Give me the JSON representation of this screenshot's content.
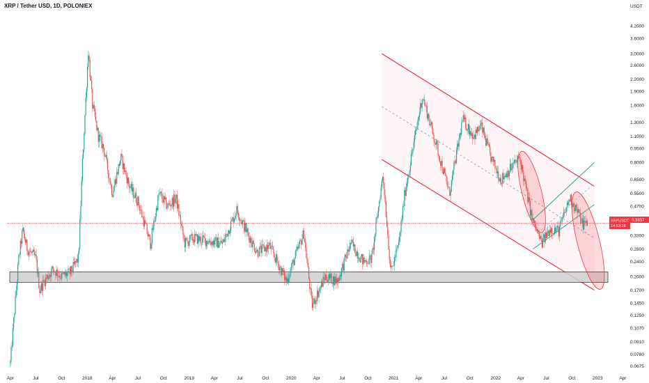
{
  "header": {
    "title": "XRP / Tether USD, 1D, POLONIEX"
  },
  "axis": {
    "unit": "USDT"
  },
  "price_label": {
    "symbol": "XRPUSDT",
    "price": "0.3837",
    "countdown": "14:53:19",
    "color": "#f23645"
  },
  "colors": {
    "up": "#26a69a",
    "down": "#ef5350",
    "channel": "#f23645",
    "rising_channel": "#22ab94",
    "zone": "#cfcfcf"
  },
  "chart_data": {
    "type": "candlestick",
    "title": "XRP / Tether USD, 1D, POLONIEX",
    "scale": "log",
    "ylim": [
      0.0625,
      5.2
    ],
    "x_ticks": [
      "Apr",
      "Jul",
      "Oct",
      "2018",
      "Apr",
      "Jul",
      "Oct",
      "2019",
      "Apr",
      "Jul",
      "Oct",
      "2020",
      "Apr",
      "Jul",
      "Oct",
      "2021",
      "Apr",
      "Jul",
      "Oct",
      "2022",
      "Apr",
      "Jul",
      "Oct",
      "2023",
      "Apr"
    ],
    "y_ticks": [
      "0.0675",
      "0.0780",
      "0.0910",
      "0.1070",
      "0.1250",
      "0.1450",
      "0.1700",
      "0.2000",
      "0.2400",
      "0.2800",
      "0.3300",
      "0.4700",
      "0.5500",
      "0.6500",
      "0.8000",
      "0.9500",
      "1.1000",
      "1.3000",
      "1.6000",
      "1.9000",
      "2.2000",
      "2.6000",
      "3.0000",
      "3.6000",
      "4.2000"
    ],
    "y_tick_values": [
      0.0675,
      0.078,
      0.091,
      0.107,
      0.125,
      0.145,
      0.17,
      0.2,
      0.24,
      0.28,
      0.33,
      0.47,
      0.55,
      0.65,
      0.8,
      0.95,
      1.1,
      1.3,
      1.6,
      1.9,
      2.2,
      2.6,
      3.0,
      3.6,
      4.2
    ],
    "current_price": 0.3837,
    "price_path": [
      [
        "2017-04-01",
        0.07
      ],
      [
        "2017-05-01",
        0.25
      ],
      [
        "2017-05-15",
        0.35
      ],
      [
        "2017-06-01",
        0.28
      ],
      [
        "2017-07-01",
        0.25
      ],
      [
        "2017-07-15",
        0.17
      ],
      [
        "2017-08-01",
        0.19
      ],
      [
        "2017-09-01",
        0.22
      ],
      [
        "2017-10-01",
        0.2
      ],
      [
        "2017-11-01",
        0.21
      ],
      [
        "2017-12-01",
        0.25
      ],
      [
        "2017-12-15",
        0.8
      ],
      [
        "2018-01-05",
        3.1
      ],
      [
        "2018-01-20",
        1.6
      ],
      [
        "2018-02-10",
        1.1
      ],
      [
        "2018-03-01",
        0.95
      ],
      [
        "2018-04-01",
        0.55
      ],
      [
        "2018-05-01",
        0.85
      ],
      [
        "2018-06-01",
        0.6
      ],
      [
        "2018-07-01",
        0.5
      ],
      [
        "2018-08-15",
        0.3
      ],
      [
        "2018-09-15",
        0.55
      ],
      [
        "2018-10-15",
        0.47
      ],
      [
        "2018-11-15",
        0.52
      ],
      [
        "2018-12-15",
        0.3
      ],
      [
        "2019-01-15",
        0.32
      ],
      [
        "2019-03-01",
        0.31
      ],
      [
        "2019-05-01",
        0.3
      ],
      [
        "2019-06-20",
        0.45
      ],
      [
        "2019-08-01",
        0.33
      ],
      [
        "2019-09-01",
        0.27
      ],
      [
        "2019-10-15",
        0.29
      ],
      [
        "2019-12-15",
        0.19
      ],
      [
        "2020-02-15",
        0.34
      ],
      [
        "2020-03-15",
        0.14
      ],
      [
        "2020-05-01",
        0.2
      ],
      [
        "2020-06-15",
        0.19
      ],
      [
        "2020-08-01",
        0.3
      ],
      [
        "2020-09-15",
        0.24
      ],
      [
        "2020-10-15",
        0.25
      ],
      [
        "2020-11-24",
        0.7
      ],
      [
        "2020-12-22",
        0.21
      ],
      [
        "2021-01-20",
        0.3
      ],
      [
        "2021-02-10",
        0.55
      ],
      [
        "2021-04-14",
        1.8
      ],
      [
        "2021-06-15",
        0.85
      ],
      [
        "2021-07-20",
        0.55
      ],
      [
        "2021-09-05",
        1.35
      ],
      [
        "2021-10-15",
        1.1
      ],
      [
        "2021-11-10",
        1.25
      ],
      [
        "2021-12-15",
        0.85
      ],
      [
        "2022-01-20",
        0.65
      ],
      [
        "2022-03-28",
        0.85
      ],
      [
        "2022-05-12",
        0.4
      ],
      [
        "2022-06-15",
        0.3
      ],
      [
        "2022-07-15",
        0.36
      ],
      [
        "2022-08-15",
        0.35
      ],
      [
        "2022-09-23",
        0.52
      ],
      [
        "2022-10-15",
        0.46
      ],
      [
        "2022-11-09",
        0.38
      ],
      [
        "2022-11-25",
        0.3837
      ]
    ],
    "annotations": {
      "descending_channel_upper": [
        [
          "2020-11-20",
          3.0
        ],
        [
          "2022-12-20",
          0.6
        ]
      ],
      "descending_channel_lower": [
        [
          "2020-11-20",
          0.83
        ],
        [
          "2022-12-20",
          0.17
        ]
      ],
      "descending_channel_mid": [
        [
          "2020-11-20",
          1.58
        ],
        [
          "2022-12-20",
          0.32
        ]
      ],
      "rising_channel_upper": [
        [
          "2022-05-15",
          0.4
        ],
        [
          "2022-12-20",
          0.8
        ]
      ],
      "rising_channel_lower": [
        [
          "2022-05-15",
          0.28
        ],
        [
          "2022-12-20",
          0.48
        ]
      ],
      "support_zone": [
        0.187,
        0.212
      ]
    }
  }
}
